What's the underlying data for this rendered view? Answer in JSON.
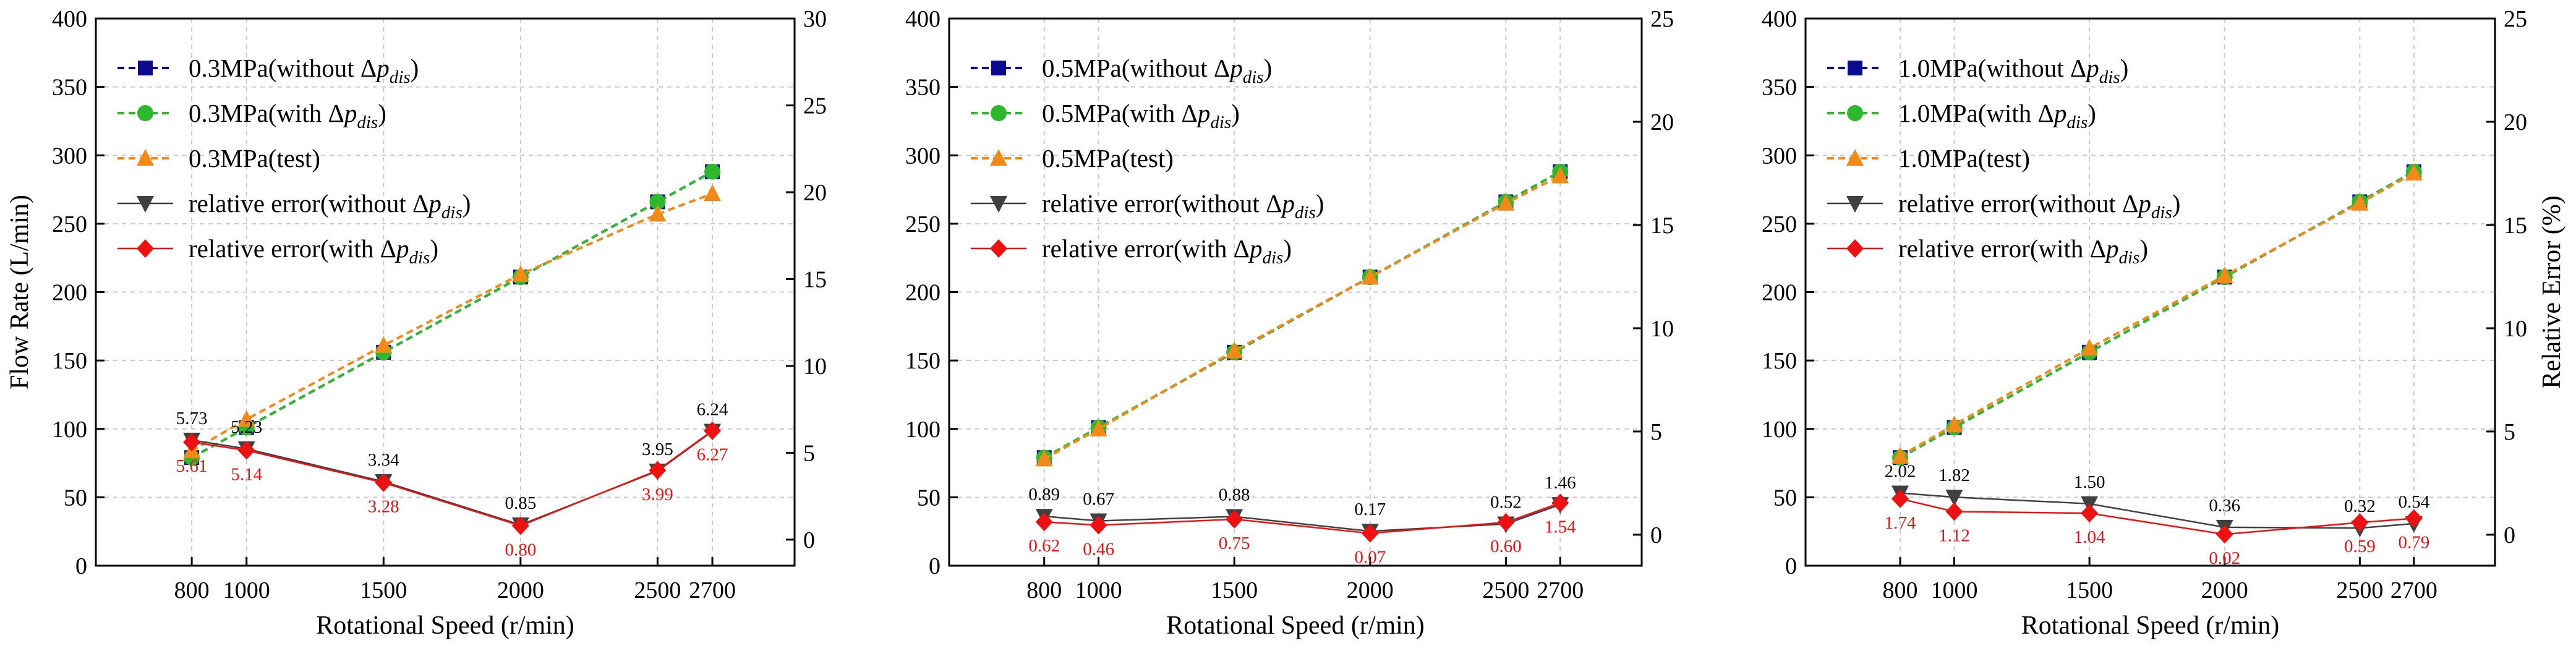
{
  "figure": {
    "charts": [
      {
        "id": "panel-0.3mpa",
        "type": "line",
        "x": [
          800,
          1000,
          1500,
          2000,
          2500,
          2700
        ],
        "xlabel": "Rotational Speed (r/min)",
        "ylabel": "Flow Rate (L/min)",
        "ylabel2": "",
        "xlim": [
          450,
          3000
        ],
        "ylim": [
          0,
          400
        ],
        "ylim2": [
          -1.5,
          30
        ],
        "yticks": [
          "0",
          "50",
          "100",
          "150",
          "200",
          "250",
          "300",
          "350",
          "400"
        ],
        "yticks2": [
          "0",
          "5",
          "10",
          "15",
          "20",
          "25",
          "30"
        ],
        "legend": [
          {
            "pre": "0.3MPa(without ",
            "sym": "Δ",
            "var": "p",
            "sub": "dis",
            "post": ")"
          },
          {
            "pre": "0.3MPa(with ",
            "sym": "Δ",
            "var": "p",
            "sub": "dis",
            "post": ")"
          },
          {
            "pre": "0.3MPa(test)",
            "sym": "",
            "var": "",
            "sub": "",
            "post": ""
          },
          {
            "pre": "relative error(without ",
            "sym": "Δ",
            "var": "p",
            "sub": "dis",
            "post": ")"
          },
          {
            "pre": "relative error(with ",
            "sym": "Δ",
            "var": "p",
            "sub": "dis",
            "post": ")"
          }
        ],
        "series": [
          {
            "name": "0.3MPa(without Δpdis)",
            "axis": "left",
            "color": "#0a0a8f",
            "marker": "square",
            "dashed": true,
            "values": [
              79,
              101,
              156,
              211,
              266,
              288
            ]
          },
          {
            "name": "0.3MPa(with Δpdis)",
            "axis": "left",
            "color": "#2db82d",
            "marker": "circle",
            "dashed": true,
            "values": [
              79,
              101,
              156,
              211,
              266,
              288
            ]
          },
          {
            "name": "0.3MPa(test)",
            "axis": "left",
            "color": "#f28a1a",
            "marker": "triangle-up",
            "dashed": true,
            "values": [
              84,
              107,
              161,
              213,
              257,
              272
            ]
          },
          {
            "name": "relative error(without Δpdis)",
            "axis": "right",
            "color": "#404040",
            "marker": "triangle-down",
            "dashed": false,
            "values": [
              5.73,
              5.23,
              3.34,
              0.85,
              3.95,
              6.24
            ],
            "labels": [
              "5.73",
              "5.23",
              "3.34",
              "0.85",
              "3.95",
              "6.24"
            ]
          },
          {
            "name": "relative error(with Δpdis)",
            "axis": "right",
            "color": "#ee1111",
            "marker": "diamond",
            "dashed": false,
            "values": [
              5.61,
              5.14,
              3.28,
              0.8,
              3.99,
              6.27
            ],
            "labels": [
              "5.61",
              "5.14",
              "3.28",
              "0.80",
              "3.99",
              "6.27"
            ]
          }
        ]
      },
      {
        "id": "panel-0.5mpa",
        "type": "line",
        "x": [
          800,
          1000,
          1500,
          2000,
          2500,
          2700
        ],
        "xlabel": "Rotational Speed (r/min)",
        "ylabel": "",
        "ylabel2": "",
        "xlim": [
          450,
          3000
        ],
        "ylim": [
          0,
          400
        ],
        "ylim2": [
          -1.5,
          25
        ],
        "yticks": [
          "0",
          "50",
          "100",
          "150",
          "200",
          "250",
          "300",
          "350",
          "400"
        ],
        "yticks2": [
          "0",
          "5",
          "10",
          "15",
          "20",
          "25"
        ],
        "legend": [
          {
            "pre": "0.5MPa(without ",
            "sym": "Δ",
            "var": "p",
            "sub": "dis",
            "post": ")"
          },
          {
            "pre": "0.5MPa(with ",
            "sym": "Δ",
            "var": "p",
            "sub": "dis",
            "post": ")"
          },
          {
            "pre": "0.5MPa(test)",
            "sym": "",
            "var": "",
            "sub": "",
            "post": ""
          },
          {
            "pre": "relative error(without ",
            "sym": "Δ",
            "var": "p",
            "sub": "dis",
            "post": ")"
          },
          {
            "pre": "relative error(with ",
            "sym": "Δ",
            "var": "p",
            "sub": "dis",
            "post": ")"
          }
        ],
        "series": [
          {
            "name": "0.5MPa(without Δpdis)",
            "axis": "left",
            "color": "#0a0a8f",
            "marker": "square",
            "dashed": true,
            "values": [
              79,
              101,
              156,
              211,
              266,
              288
            ]
          },
          {
            "name": "0.5MPa(with Δpdis)",
            "axis": "left",
            "color": "#2db82d",
            "marker": "circle",
            "dashed": true,
            "values": [
              79,
              101,
              156,
              211,
              266,
              288
            ]
          },
          {
            "name": "0.5MPa(test)",
            "axis": "left",
            "color": "#f28a1a",
            "marker": "triangle-up",
            "dashed": true,
            "values": [
              78,
              100,
              157,
              211,
              265,
              285
            ]
          },
          {
            "name": "relative error(without Δpdis)",
            "axis": "right",
            "color": "#404040",
            "marker": "triangle-down",
            "dashed": false,
            "values": [
              0.89,
              0.67,
              0.88,
              0.17,
              0.52,
              1.46
            ],
            "labels": [
              "0.89",
              "0.67",
              "0.88",
              "0.17",
              "0.52",
              "1.46"
            ]
          },
          {
            "name": "relative error(with Δpdis)",
            "axis": "right",
            "color": "#ee1111",
            "marker": "diamond",
            "dashed": false,
            "values": [
              0.62,
              0.46,
              0.75,
              0.07,
              0.6,
              1.54
            ],
            "labels": [
              "0.62",
              "0.46",
              "0.75",
              "0.07",
              "0.60",
              "1.54"
            ]
          }
        ]
      },
      {
        "id": "panel-1.0mpa",
        "type": "line",
        "x": [
          800,
          1000,
          1500,
          2000,
          2500,
          2700
        ],
        "xlabel": "Rotational Speed (r/min)",
        "ylabel": "",
        "ylabel2": "Relative Error (%)",
        "xlim": [
          450,
          3000
        ],
        "ylim": [
          0,
          400
        ],
        "ylim2": [
          -1.5,
          25
        ],
        "yticks": [
          "0",
          "50",
          "100",
          "150",
          "200",
          "250",
          "300",
          "350",
          "400"
        ],
        "yticks2": [
          "0",
          "5",
          "10",
          "15",
          "20",
          "25"
        ],
        "legend": [
          {
            "pre": "1.0MPa(without ",
            "sym": "Δ",
            "var": "p",
            "sub": "dis",
            "post": ")"
          },
          {
            "pre": "1.0MPa(with ",
            "sym": "Δ",
            "var": "p",
            "sub": "dis",
            "post": ")"
          },
          {
            "pre": "1.0MPa(test)",
            "sym": "",
            "var": "",
            "sub": "",
            "post": ""
          },
          {
            "pre": "relative error(without ",
            "sym": "Δ",
            "var": "p",
            "sub": "dis",
            "post": ")"
          },
          {
            "pre": "relative error(with ",
            "sym": "Δ",
            "var": "p",
            "sub": "dis",
            "post": ")"
          }
        ],
        "series": [
          {
            "name": "1.0MPa(without Δpdis)",
            "axis": "left",
            "color": "#0a0a8f",
            "marker": "square",
            "dashed": true,
            "values": [
              79,
              101,
              156,
              211,
              266,
              288
            ]
          },
          {
            "name": "1.0MPa(with Δpdis)",
            "axis": "left",
            "color": "#2db82d",
            "marker": "circle",
            "dashed": true,
            "values": [
              79,
              101,
              156,
              211,
              266,
              288
            ]
          },
          {
            "name": "1.0MPa(test)",
            "axis": "left",
            "color": "#f28a1a",
            "marker": "triangle-up",
            "dashed": true,
            "values": [
              80,
              103,
              159,
              212,
              265,
              287
            ]
          },
          {
            "name": "relative error(without Δpdis)",
            "axis": "right",
            "color": "#404040",
            "marker": "triangle-down",
            "dashed": false,
            "values": [
              2.02,
              1.82,
              1.5,
              0.36,
              0.32,
              0.54
            ],
            "labels": [
              "2.02",
              "1.82",
              "1.50",
              "0.36",
              "0.32",
              "0.54"
            ]
          },
          {
            "name": "relative error(with Δpdis)",
            "axis": "right",
            "color": "#ee1111",
            "marker": "diamond",
            "dashed": false,
            "values": [
              1.74,
              1.12,
              1.04,
              0.02,
              0.59,
              0.79
            ],
            "labels": [
              "1.74",
              "1.12",
              "1.04",
              "0.02",
              "0.59",
              "0.79"
            ]
          }
        ]
      }
    ]
  }
}
